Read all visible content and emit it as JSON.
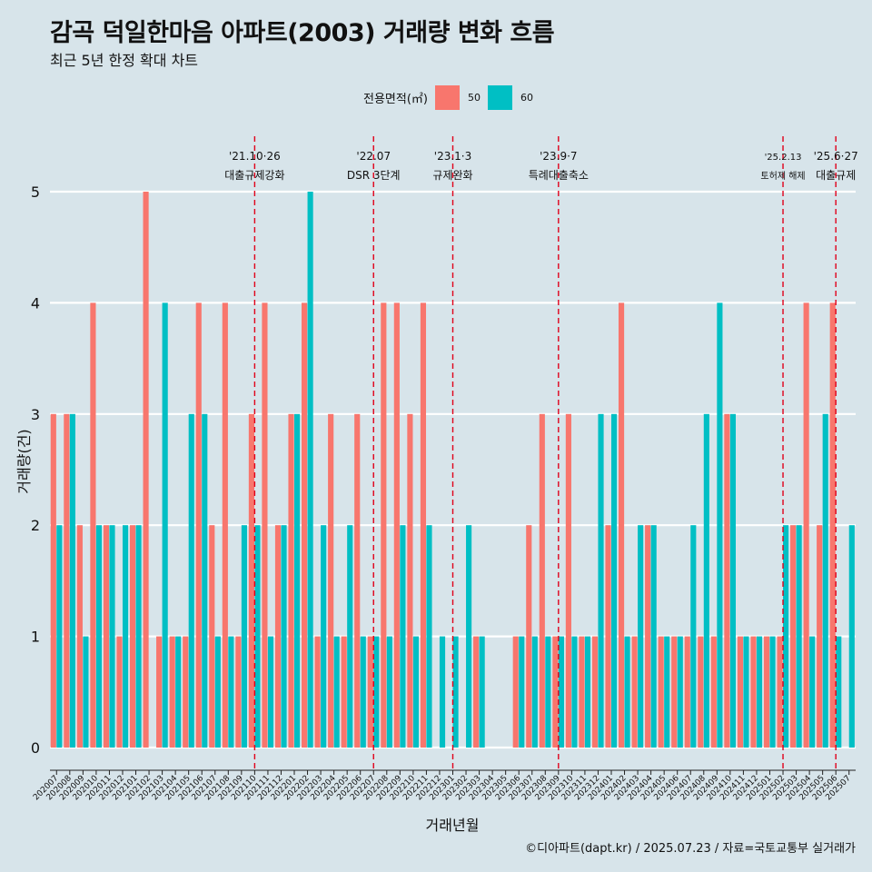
{
  "chart_data": {
    "type": "bar",
    "title": "감곡 덕일한마음 아파트(2003) 거래량 변화 흐름",
    "subtitle": "최근 5년 한정 확대 차트",
    "xlabel": "거래년월",
    "ylabel": "거래량(건)",
    "ylim": [
      0,
      5.4
    ],
    "yticks": [
      0,
      1,
      2,
      3,
      4,
      5
    ],
    "legend_title": "전용면적(㎡)",
    "legend_position": "top",
    "caption": "©디아파트(dapt.kr) / 2025.07.23 / 자료=국토교통부 실거래가",
    "categories": [
      "202007",
      "202008",
      "202009",
      "202010",
      "202011",
      "202012",
      "202101",
      "202102",
      "202103",
      "202104",
      "202105",
      "202106",
      "202107",
      "202108",
      "202109",
      "202110",
      "202111",
      "202112",
      "202201",
      "202202",
      "202203",
      "202204",
      "202205",
      "202206",
      "202207",
      "202208",
      "202209",
      "202210",
      "202211",
      "202212",
      "202301",
      "202302",
      "202303",
      "202304",
      "202305",
      "202306",
      "202307",
      "202308",
      "202309",
      "202310",
      "202311",
      "202312",
      "202401",
      "202402",
      "202403",
      "202404",
      "202405",
      "202406",
      "202407",
      "202408",
      "202409",
      "202410",
      "202411",
      "202412",
      "202501",
      "202502",
      "202503",
      "202504",
      "202505",
      "202506",
      "202507"
    ],
    "series": [
      {
        "name": "50",
        "color": "#f8766d",
        "values": [
          3,
          3,
          2,
          4,
          2,
          1,
          2,
          5,
          1,
          1,
          1,
          4,
          2,
          4,
          1,
          3,
          4,
          2,
          3,
          4,
          1,
          3,
          1,
          3,
          1,
          4,
          4,
          3,
          4,
          0,
          0,
          0,
          1,
          0,
          0,
          1,
          2,
          3,
          1,
          3,
          1,
          1,
          2,
          4,
          1,
          2,
          1,
          1,
          1,
          1,
          1,
          3,
          1,
          1,
          1,
          1,
          2,
          4,
          2,
          4,
          0
        ]
      },
      {
        "name": "60",
        "color": "#00bfc4",
        "values": [
          2,
          3,
          1,
          2,
          2,
          2,
          2,
          0,
          4,
          1,
          3,
          3,
          1,
          1,
          2,
          2,
          1,
          2,
          3,
          5,
          2,
          1,
          2,
          1,
          1,
          1,
          2,
          1,
          2,
          1,
          1,
          2,
          1,
          0,
          0,
          1,
          1,
          1,
          1,
          1,
          1,
          3,
          3,
          1,
          2,
          2,
          1,
          1,
          2,
          3,
          4,
          3,
          1,
          1,
          1,
          2,
          2,
          1,
          3,
          1,
          2
        ]
      }
    ],
    "annotations": [
      {
        "category": "202110",
        "line1": "'21.10·26",
        "line2": "대출규제강화"
      },
      {
        "category": "202207",
        "line1": "'22.07",
        "line2": "DSR 3단계"
      },
      {
        "category": "202301",
        "line1": "'23.1·3",
        "line2": "규제완화"
      },
      {
        "category": "202309",
        "line1": "'23.9·7",
        "line2": "특례대출축소"
      },
      {
        "category": "202502",
        "line1": "'25.2.13",
        "line2": "토허제 해제",
        "small": true
      },
      {
        "category": "202506",
        "line1": "'25.6·27",
        "line2": "대출규제"
      }
    ]
  }
}
